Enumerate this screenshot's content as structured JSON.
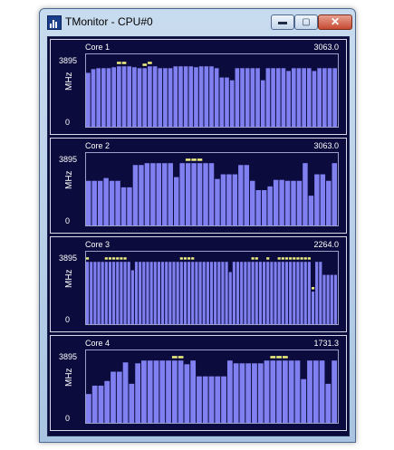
{
  "window": {
    "title": "TMonitor - CPU#0",
    "buttons": {
      "minimize": "▬",
      "maximize": "▢",
      "close": "✕"
    },
    "icon": "bar-chart-icon"
  },
  "colors": {
    "bar": "#8080f0",
    "peak": "#f0f080",
    "background": "#0b0b3d"
  },
  "chart_data": [
    {
      "type": "bar",
      "title": "Core 1",
      "current_value": "3063.0",
      "ylabel": "MHz",
      "ylim": [
        0,
        3895
      ],
      "ytick_labels": [
        "3895",
        "0"
      ],
      "values": [
        2900,
        3100,
        3150,
        3150,
        3150,
        3200,
        3250,
        3250,
        3250,
        3200,
        3150,
        3150,
        3250,
        3250,
        3150,
        3150,
        3150,
        3250,
        3250,
        3250,
        3250,
        3200,
        3250,
        3250,
        3250,
        3150,
        2650,
        2650,
        2500,
        3150,
        3150,
        3150,
        3150,
        3150,
        2500,
        3150,
        3150,
        3150,
        3150,
        3000,
        3150,
        3150,
        3150,
        3150,
        3000,
        3150,
        3150,
        3150,
        3150
      ],
      "peaks": [
        0,
        0,
        0,
        0,
        0,
        0,
        1,
        1,
        0,
        0,
        0,
        1,
        1,
        0,
        0,
        0,
        0,
        0,
        0,
        0,
        0,
        0,
        0,
        0,
        0,
        0,
        0,
        0,
        0,
        0,
        0,
        0,
        0,
        0,
        0,
        0,
        0,
        0,
        0,
        0,
        0,
        0,
        0,
        0,
        0,
        0,
        0,
        0,
        0
      ]
    },
    {
      "type": "bar",
      "title": "Core 2",
      "current_value": "3063.0",
      "ylabel": "MHz",
      "ylim": [
        0,
        3895
      ],
      "ytick_labels": [
        "3895",
        "0"
      ],
      "values": [
        2400,
        2400,
        2400,
        2550,
        2400,
        2400,
        2050,
        2050,
        3250,
        3250,
        3350,
        3350,
        3350,
        3350,
        3350,
        2600,
        3350,
        3350,
        3350,
        3350,
        3350,
        3350,
        2500,
        2750,
        2750,
        2750,
        3250,
        3250,
        2400,
        1900,
        1900,
        2100,
        2450,
        2450,
        2400,
        2400,
        2400,
        3350,
        1600,
        2750,
        2750,
        2400,
        3350
      ],
      "peaks": [
        0,
        0,
        0,
        0,
        0,
        0,
        0,
        0,
        0,
        0,
        0,
        0,
        0,
        0,
        0,
        0,
        0,
        1,
        1,
        1,
        0,
        0,
        0,
        0,
        0,
        0,
        0,
        0,
        0,
        0,
        0,
        0,
        0,
        0,
        0,
        0,
        0,
        0,
        0,
        0,
        0,
        0,
        0
      ]
    },
    {
      "type": "bar",
      "title": "Core 3",
      "current_value": "2264.0",
      "ylabel": "MHz",
      "ylim": [
        0,
        3895
      ],
      "ytick_labels": [
        "3895",
        "0"
      ],
      "values": [
        3350,
        3350,
        3350,
        3350,
        3350,
        3350,
        3350,
        3350,
        3350,
        3350,
        3350,
        3350,
        2900,
        3350,
        3350,
        3350,
        3350,
        3350,
        3350,
        3350,
        3350,
        3350,
        3350,
        3350,
        3350,
        3350,
        3350,
        3350,
        3350,
        3350,
        3350,
        3350,
        3350,
        3350,
        3350,
        3350,
        3350,
        3350,
        2800,
        3350,
        3350,
        3350,
        3350,
        3350,
        3350,
        3350,
        3350,
        3350,
        3350,
        3350,
        3350,
        3350,
        3350,
        3350,
        3350,
        3350,
        3350,
        3350,
        3350,
        3350,
        1750,
        3350,
        3350,
        2650,
        2650,
        2650,
        2650
      ],
      "peaks": [
        1,
        0,
        0,
        0,
        0,
        1,
        1,
        1,
        1,
        1,
        1,
        0,
        0,
        0,
        0,
        0,
        0,
        0,
        0,
        0,
        0,
        0,
        0,
        0,
        0,
        1,
        1,
        1,
        1,
        0,
        0,
        0,
        0,
        0,
        0,
        0,
        0,
        0,
        0,
        0,
        0,
        0,
        0,
        0,
        1,
        1,
        0,
        0,
        1,
        0,
        0,
        1,
        1,
        1,
        1,
        1,
        1,
        1,
        1,
        1,
        1,
        0,
        0,
        0,
        0,
        0,
        0
      ]
    },
    {
      "type": "bar",
      "title": "Core 4",
      "current_value": "1731.3",
      "ylabel": "MHz",
      "ylim": [
        0,
        3895
      ],
      "ytick_labels": [
        "3895",
        "0"
      ],
      "values": [
        1550,
        2000,
        2000,
        2250,
        2750,
        2750,
        3250,
        2100,
        3200,
        3350,
        3350,
        3350,
        3350,
        3350,
        3350,
        3350,
        3150,
        3350,
        2500,
        2500,
        2500,
        2500,
        2500,
        3350,
        3200,
        3200,
        3200,
        3200,
        3200,
        3350,
        3350,
        3350,
        3350,
        3350,
        3350,
        2350,
        3350,
        3350,
        3350,
        2100,
        3350
      ],
      "peaks": [
        0,
        0,
        0,
        0,
        0,
        0,
        0,
        0,
        0,
        0,
        0,
        0,
        0,
        0,
        1,
        1,
        0,
        0,
        0,
        0,
        0,
        0,
        0,
        0,
        0,
        0,
        0,
        0,
        0,
        0,
        1,
        1,
        1,
        0,
        0,
        0,
        0,
        0,
        0,
        0,
        0
      ]
    }
  ]
}
